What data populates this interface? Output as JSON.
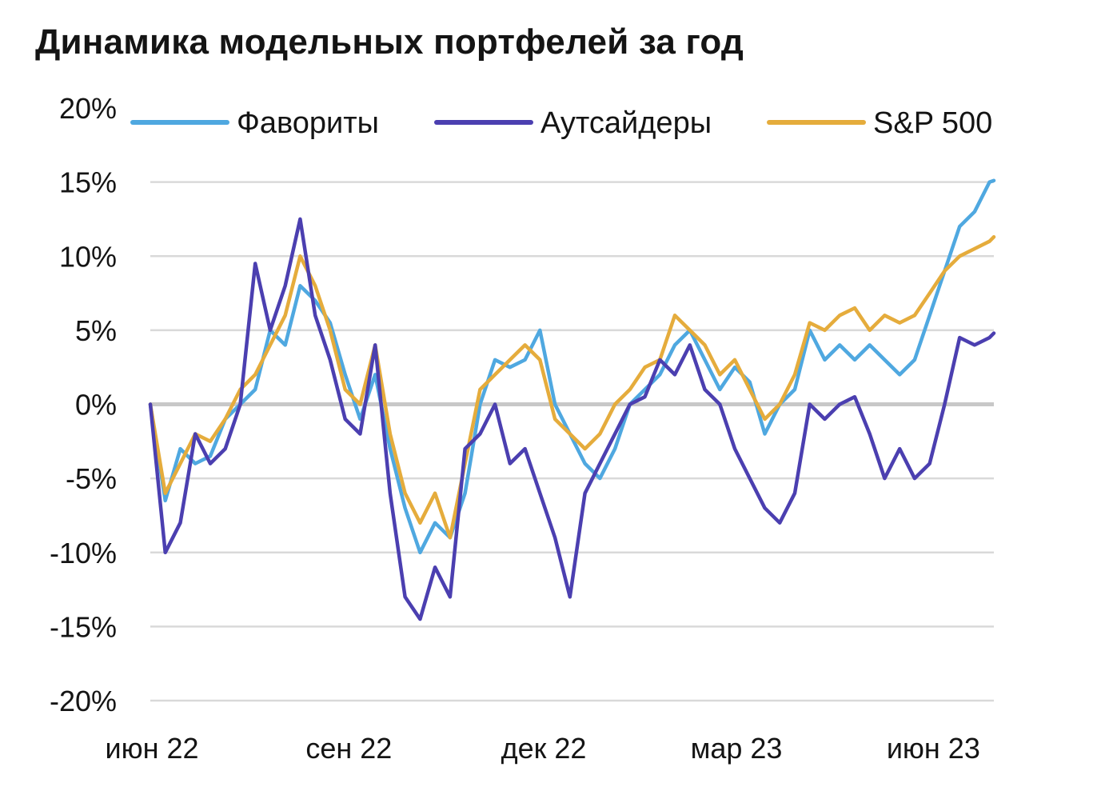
{
  "chart_data": {
    "type": "line",
    "title": "Динамика модельных портфелей за год",
    "ylim": [
      -20,
      20
    ],
    "y_ticks": [
      20,
      15,
      10,
      5,
      0,
      -5,
      -10,
      -15,
      -20
    ],
    "y_tick_labels": [
      "20%",
      "15%",
      "10%",
      "5%",
      "0%",
      "-5%",
      "-10%",
      "-15%",
      "-20%"
    ],
    "x_tick_labels": [
      "июн 22",
      "сен 22",
      "дек 22",
      "мар 23",
      "июн 23"
    ],
    "x_tick_dates": [
      "2022-06-01",
      "2022-09-01",
      "2022-12-01",
      "2023-03-01",
      "2023-06-01"
    ],
    "grid": true,
    "legend_position": "top",
    "x": [
      "2022-06-01",
      "2022-06-08",
      "2022-06-15",
      "2022-06-22",
      "2022-06-29",
      "2022-07-06",
      "2022-07-13",
      "2022-07-20",
      "2022-07-27",
      "2022-08-03",
      "2022-08-10",
      "2022-08-17",
      "2022-08-24",
      "2022-08-31",
      "2022-09-07",
      "2022-09-14",
      "2022-09-21",
      "2022-09-28",
      "2022-10-05",
      "2022-10-12",
      "2022-10-19",
      "2022-10-26",
      "2022-11-02",
      "2022-11-09",
      "2022-11-16",
      "2022-11-23",
      "2022-11-30",
      "2022-12-07",
      "2022-12-14",
      "2022-12-21",
      "2022-12-28",
      "2023-01-04",
      "2023-01-11",
      "2023-01-18",
      "2023-01-25",
      "2023-02-01",
      "2023-02-08",
      "2023-02-15",
      "2023-02-22",
      "2023-03-01",
      "2023-03-08",
      "2023-03-15",
      "2023-03-22",
      "2023-03-29",
      "2023-04-05",
      "2023-04-12",
      "2023-04-19",
      "2023-04-26",
      "2023-05-03",
      "2023-05-10",
      "2023-05-17",
      "2023-05-24",
      "2023-05-31",
      "2023-06-07",
      "2023-06-14",
      "2023-06-21",
      "2023-06-28",
      "2023-06-30"
    ],
    "series": [
      {
        "name": "Фавориты",
        "color": "#4fa8e0",
        "values": [
          0,
          -6.5,
          -3,
          -4,
          -3.5,
          -1,
          0,
          1,
          5,
          4,
          8,
          7,
          5.5,
          2,
          -1,
          2,
          -3,
          -7,
          -10,
          -8,
          -9,
          -6,
          0,
          3,
          2.5,
          3,
          5,
          0,
          -2,
          -4,
          -5,
          -3,
          0,
          1,
          2,
          4,
          5,
          3,
          1,
          2.5,
          1.5,
          -2,
          0,
          1,
          5,
          3,
          4,
          3,
          4,
          3,
          2,
          3,
          6,
          9,
          12,
          13,
          15,
          15.1
        ]
      },
      {
        "name": "Аутсайдеры",
        "color": "#4b3fb0",
        "values": [
          0,
          -10,
          -8,
          -2,
          -4,
          -3,
          0,
          9.5,
          5,
          8,
          12.5,
          6,
          3,
          -1,
          -2,
          4,
          -6,
          -13,
          -14.5,
          -11,
          -13,
          -3,
          -2,
          0,
          -4,
          -3,
          -6,
          -9,
          -13,
          -6,
          -4,
          -2,
          0,
          0.5,
          3,
          2,
          4,
          1,
          0,
          -3,
          -5,
          -7,
          -8,
          -6,
          0,
          -1,
          0,
          0.5,
          -2,
          -5,
          -3,
          -5,
          -4,
          0,
          4.5,
          4,
          4.5,
          4.8
        ]
      },
      {
        "name": "S&P 500",
        "color": "#e5ac3c",
        "values": [
          0,
          -6,
          -4,
          -2,
          -2.5,
          -1,
          1,
          2,
          4,
          6,
          10,
          8,
          5,
          1,
          0,
          4,
          -2,
          -6,
          -8,
          -6,
          -9,
          -4,
          1,
          2,
          3,
          4,
          3,
          -1,
          -2,
          -3,
          -2,
          0,
          1,
          2.5,
          3,
          6,
          5,
          4,
          2,
          3,
          1,
          -1,
          0,
          2,
          5.5,
          5,
          6,
          6.5,
          5,
          6,
          5.5,
          6,
          7.5,
          9,
          10,
          10.5,
          11,
          11.3
        ]
      }
    ]
  }
}
